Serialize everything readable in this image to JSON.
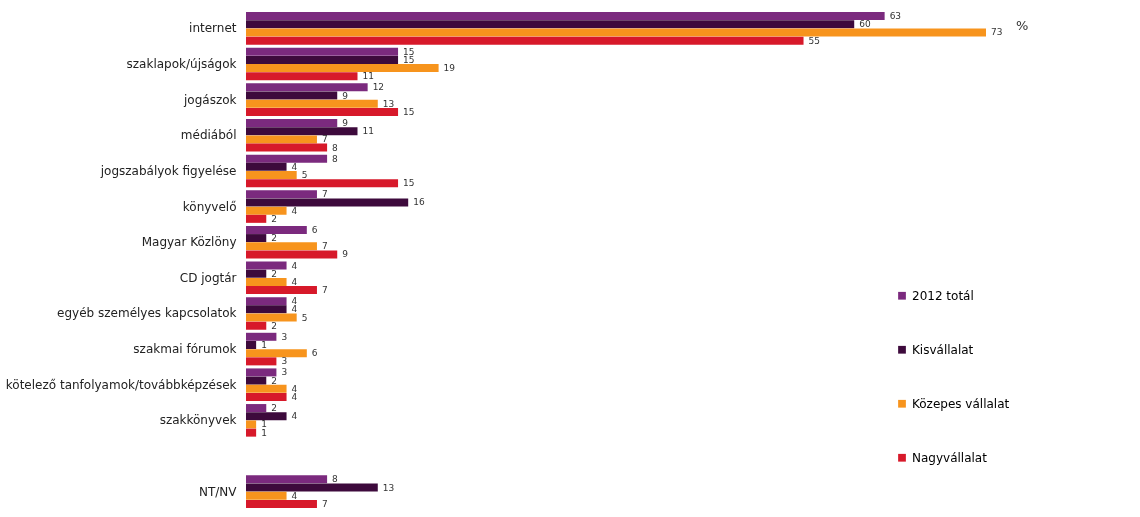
{
  "chart_data": {
    "type": "bar",
    "orientation": "horizontal",
    "data_labels": true,
    "legend": "right",
    "annotations": [
      "%"
    ],
    "categories": [
      "internet",
      "szaklapok/újságok",
      "jogászok",
      "médiából",
      "jogszabályok figyelése",
      "könyvelő",
      "Magyar Közlöny",
      "CD jogtár",
      "egyéb személyes kapcsolatok",
      "szakmai fórumok",
      "kötelező tanfolyamok/továbbképzések",
      "szakkönyvek",
      null,
      "NT/NV"
    ],
    "series": [
      {
        "name": "2012 totál",
        "color": "#7b2a7e",
        "values": [
          63,
          15,
          12,
          9,
          8,
          7,
          6,
          4,
          4,
          3,
          3,
          2,
          null,
          8
        ]
      },
      {
        "name": "Kisvállalat",
        "color": "#3d0a3c",
        "values": [
          60,
          15,
          9,
          11,
          4,
          16,
          2,
          2,
          4,
          1,
          2,
          4,
          null,
          13
        ]
      },
      {
        "name": "Közepes vállalat",
        "color": "#f7941d",
        "values": [
          73,
          19,
          13,
          7,
          5,
          4,
          7,
          4,
          5,
          6,
          4,
          1,
          null,
          4
        ]
      },
      {
        "name": "Nagyvállalat",
        "color": "#d7192a",
        "values": [
          55,
          11,
          15,
          8,
          15,
          2,
          9,
          7,
          2,
          3,
          4,
          1,
          null,
          7
        ]
      }
    ]
  }
}
